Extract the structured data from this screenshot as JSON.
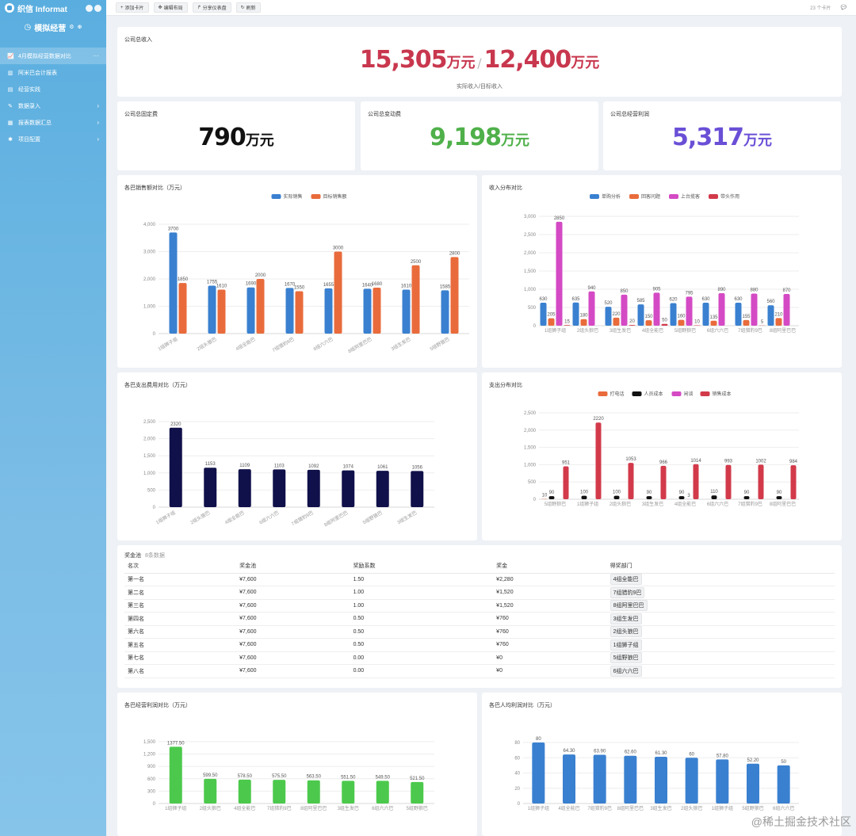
{
  "sidebar": {
    "logo": "织信 Informat",
    "app_title": "模拟经营",
    "menu": [
      {
        "label": "4月模拟经营数据对比",
        "icon": "chart-line-icon",
        "active": true,
        "arrow": "···"
      },
      {
        "label": "阿米巴会计报表",
        "icon": "chart-bar-icon",
        "active": false,
        "arrow": ""
      },
      {
        "label": "经营实践",
        "icon": "document-icon",
        "active": false,
        "arrow": ""
      },
      {
        "label": "数据录入",
        "icon": "edit-icon",
        "active": false,
        "arrow": "›"
      },
      {
        "label": "报表数据汇总",
        "icon": "table-icon",
        "active": false,
        "arrow": "›"
      },
      {
        "label": "项目配置",
        "icon": "gear-icon",
        "active": false,
        "arrow": "›"
      }
    ]
  },
  "toolbar": {
    "buttons": [
      {
        "icon": "+",
        "label": "添加卡片"
      },
      {
        "icon": "✥",
        "label": "编辑布局"
      },
      {
        "icon": "↱",
        "label": "分享仪表盘"
      },
      {
        "icon": "↻",
        "label": "刷新"
      }
    ],
    "card_count": "23 个卡片"
  },
  "revenue": {
    "title": "公司总收入",
    "actual": "15,305",
    "target": "12,400",
    "unit": "万元",
    "separator": "/",
    "caption": "实际收入/目标收入",
    "color": "#c8374e"
  },
  "kpis": [
    {
      "title": "公司总固定费",
      "value": "790",
      "unit": "万元",
      "color": "#111111"
    },
    {
      "title": "公司总变动费",
      "value": "9,198",
      "unit": "万元",
      "color": "#4fb04a"
    },
    {
      "title": "公司总经营利润",
      "value": "5,317",
      "unit": "万元",
      "color": "#6a4fd6"
    }
  ],
  "charts": {
    "sales": {
      "title": "各巴销售额对比（万元）",
      "chart_data": {
        "type": "bar",
        "categories": [
          "1组狮子组",
          "2组头狼巴",
          "4组全能巴",
          "7组猎豹9巴",
          "6组六六巴",
          "8组阿里巴巴",
          "3组生发巴",
          "5组野狼巴"
        ],
        "series": [
          {
            "name": "实际销售",
            "color": "#3a80d0",
            "values": [
              3700,
              1755,
              1690,
              1670,
              1655,
              1640,
              1610,
              1585
            ]
          },
          {
            "name": "目标销售额",
            "color": "#e96b3c",
            "values": [
              1850,
              1610,
              2000,
              1550,
              3000,
              1680,
              2500,
              2800
            ]
          }
        ],
        "ylim": [
          0,
          4000
        ],
        "yticks": [
          "0",
          "1,000",
          "2,000",
          "3,000",
          "4,000"
        ],
        "ytick_values": [
          0,
          1000,
          2000,
          3000,
          4000
        ]
      }
    },
    "income": {
      "title": "收入分布对比",
      "chart_data": {
        "type": "bar",
        "categories": [
          "1组狮子组",
          "2组头狼巴",
          "3组生发巴",
          "4组全能巴",
          "5组野狼巴",
          "6组六六巴",
          "7组猎豹9巴",
          "8组阿里巴巴"
        ],
        "series": [
          {
            "name": "单购分析",
            "color": "#3a80d0",
            "values": [
              630,
              635,
              520,
              585,
              620,
              630,
              630,
              560
            ]
          },
          {
            "name": "回客问题",
            "color": "#e96b3c",
            "values": [
              205,
              180,
              220,
              150,
              160,
              135,
              155,
              210
            ]
          },
          {
            "name": "上台揽客",
            "color": "#d44ac4",
            "values": [
              2850,
              940,
              850,
              905,
              795,
              890,
              880,
              870
            ]
          },
          {
            "name": "带头作用",
            "color": "#d23a4a",
            "values": [
              15,
              0,
              20,
              50,
              10,
              0,
              5,
              0
            ]
          }
        ],
        "labels": [
          [
            "630",
            "635",
            "520",
            "585",
            "620",
            "630",
            "630",
            "560"
          ],
          [
            "205",
            "180",
            "220",
            "150",
            "160",
            "135",
            "155",
            "210"
          ],
          [
            "2850",
            "940",
            "850",
            "905",
            "795",
            "890",
            "880",
            "870"
          ],
          [
            "15",
            "",
            "20",
            "50",
            "10",
            "",
            "5",
            ""
          ]
        ],
        "ylim": [
          0,
          3000
        ],
        "yticks": [
          "0",
          "500",
          "1,000",
          "1,500",
          "2,000",
          "2,500",
          "3,000"
        ],
        "ytick_values": [
          0,
          500,
          1000,
          1500,
          2000,
          2500,
          3000
        ]
      }
    },
    "expense": {
      "title": "各巴支出费用对比（万元）",
      "chart_data": {
        "type": "bar",
        "categories": [
          "1组狮子组",
          "2组头狼巴",
          "4组全能巴",
          "6组六六巴",
          "7组猎豹9巴",
          "8组阿里巴巴",
          "5组野狼巴",
          "3组生发巴"
        ],
        "series": [
          {
            "color": "#10104a",
            "values": [
              2320,
              1153,
              1109,
              1103,
              1092,
              1074,
              1061,
              1056
            ]
          }
        ],
        "ylim": [
          0,
          2500
        ],
        "yticks": [
          "0",
          "500",
          "1,000",
          "1,500",
          "2,000",
          "2,500"
        ],
        "ytick_values": [
          0,
          500,
          1000,
          1500,
          2000,
          2500
        ]
      }
    },
    "expdist": {
      "title": "支出分布对比",
      "chart_data": {
        "type": "bar",
        "categories": [
          "5组野狼巴",
          "1组狮子组",
          "2组头狼巴",
          "3组生发巴",
          "4组全能巴",
          "6组六六巴",
          "7组猎豹9巴",
          "8组阿里巴巴"
        ],
        "series": [
          {
            "name": "打电话",
            "color": "#e96b3c",
            "values": [
              10,
              0,
              0,
              0,
              0,
              0,
              0,
              0
            ]
          },
          {
            "name": "人员成本",
            "color": "#111111",
            "values": [
              90,
              100,
              100,
              90,
              90,
              110,
              90,
              90
            ]
          },
          {
            "name": "闲谈",
            "color": "#d44ac4",
            "values": [
              0,
              0,
              0,
              0,
              3,
              0,
              0,
              0
            ]
          },
          {
            "name": "销售成本",
            "color": "#d23a4a",
            "values": [
              951,
              2220,
              1053,
              966,
              1014,
              993,
              1002,
              984
            ]
          }
        ],
        "labels": [
          [
            "10",
            "",
            "",
            "",
            "",
            "",
            "",
            ""
          ],
          [
            "90",
            "100",
            "100",
            "90",
            "90",
            "110",
            "90",
            "90"
          ],
          [
            "",
            "",
            "",
            "",
            "3",
            "",
            "",
            ""
          ],
          [
            "951",
            "2220",
            "1053",
            "966",
            "1014",
            "993",
            "1002",
            "984"
          ]
        ],
        "ylim": [
          0,
          2500
        ],
        "yticks": [
          "0",
          "500",
          "1,000",
          "1,500",
          "2,000",
          "2,500"
        ],
        "ytick_values": [
          0,
          500,
          1000,
          1500,
          2000,
          2500
        ]
      }
    },
    "profit": {
      "title": "各巴经营利润对比（万元）",
      "chart_data": {
        "type": "bar",
        "categories": [
          "1组狮子组",
          "2组头狼巴",
          "4组全能巴",
          "7组猎豹9巴",
          "8组阿里巴巴",
          "3组生发巴",
          "6组六六巴",
          "5组野狼巴"
        ],
        "series": [
          {
            "color": "#4cc94c",
            "values": [
              1377.5,
              599.5,
              578.5,
              575.5,
              563.5,
              551.5,
              549.5,
              521.5
            ]
          }
        ],
        "labels": [
          [
            "1377.50",
            "599.50",
            "578.50",
            "575.50",
            "563.50",
            "551.50",
            "549.50",
            "521.50"
          ]
        ],
        "ylim": [
          0,
          1500
        ],
        "yticks": [
          "0",
          "300",
          "600",
          "900",
          "1,200",
          "1,500"
        ],
        "ytick_values": [
          0,
          300,
          600,
          900,
          1200,
          1500
        ]
      }
    },
    "perperson": {
      "title": "各巴人均利润对比（万元）",
      "chart_data": {
        "type": "bar",
        "categories": [
          "1组狮子组",
          "4组全能巴",
          "7组猎豹9巴",
          "8组阿里巴巴",
          "3组生发巴",
          "2组头狼巴",
          "1组狮子组",
          "5组野狼巴",
          "6组六六巴"
        ],
        "series": [
          {
            "color": "#3a80d0",
            "values": [
              80,
              64.3,
              63.9,
              62.6,
              61.3,
              60,
              57.8,
              52.2,
              50
            ]
          }
        ],
        "labels": [
          [
            "80",
            "64.30",
            "63.90",
            "62.60",
            "61.30",
            "60",
            "57.80",
            "52.20",
            "50"
          ]
        ],
        "ylim": [
          0,
          80
        ],
        "yticks": [
          "0",
          "20",
          "40",
          "60",
          "80"
        ],
        "ytick_values": [
          0,
          20,
          40,
          60,
          80
        ]
      }
    }
  },
  "prize_table": {
    "title": "奖金池",
    "count": "8条数据",
    "columns": [
      "名次",
      "奖金池",
      "奖励系数",
      "奖金",
      "得奖部门"
    ],
    "rows": [
      [
        "第一名",
        "¥7,600",
        "1.50",
        "¥2,280",
        "4组全能巴"
      ],
      [
        "第二名",
        "¥7,600",
        "1.00",
        "¥1,520",
        "7组猎豹9巴"
      ],
      [
        "第三名",
        "¥7,600",
        "1.00",
        "¥1,520",
        "8组阿里巴巴"
      ],
      [
        "第四名",
        "¥7,600",
        "0.50",
        "¥760",
        "3组生发巴"
      ],
      [
        "第六名",
        "¥7,600",
        "0.50",
        "¥760",
        "2组头狼巴"
      ],
      [
        "第五名",
        "¥7,600",
        "0.50",
        "¥760",
        "1组狮子组"
      ],
      [
        "第七名",
        "¥7,600",
        "0.00",
        "¥0",
        "5组野狼巴"
      ],
      [
        "第八名",
        "¥7,600",
        "0.00",
        "¥0",
        "6组六六巴"
      ]
    ]
  },
  "watermark": "@稀土掘金技术社区"
}
